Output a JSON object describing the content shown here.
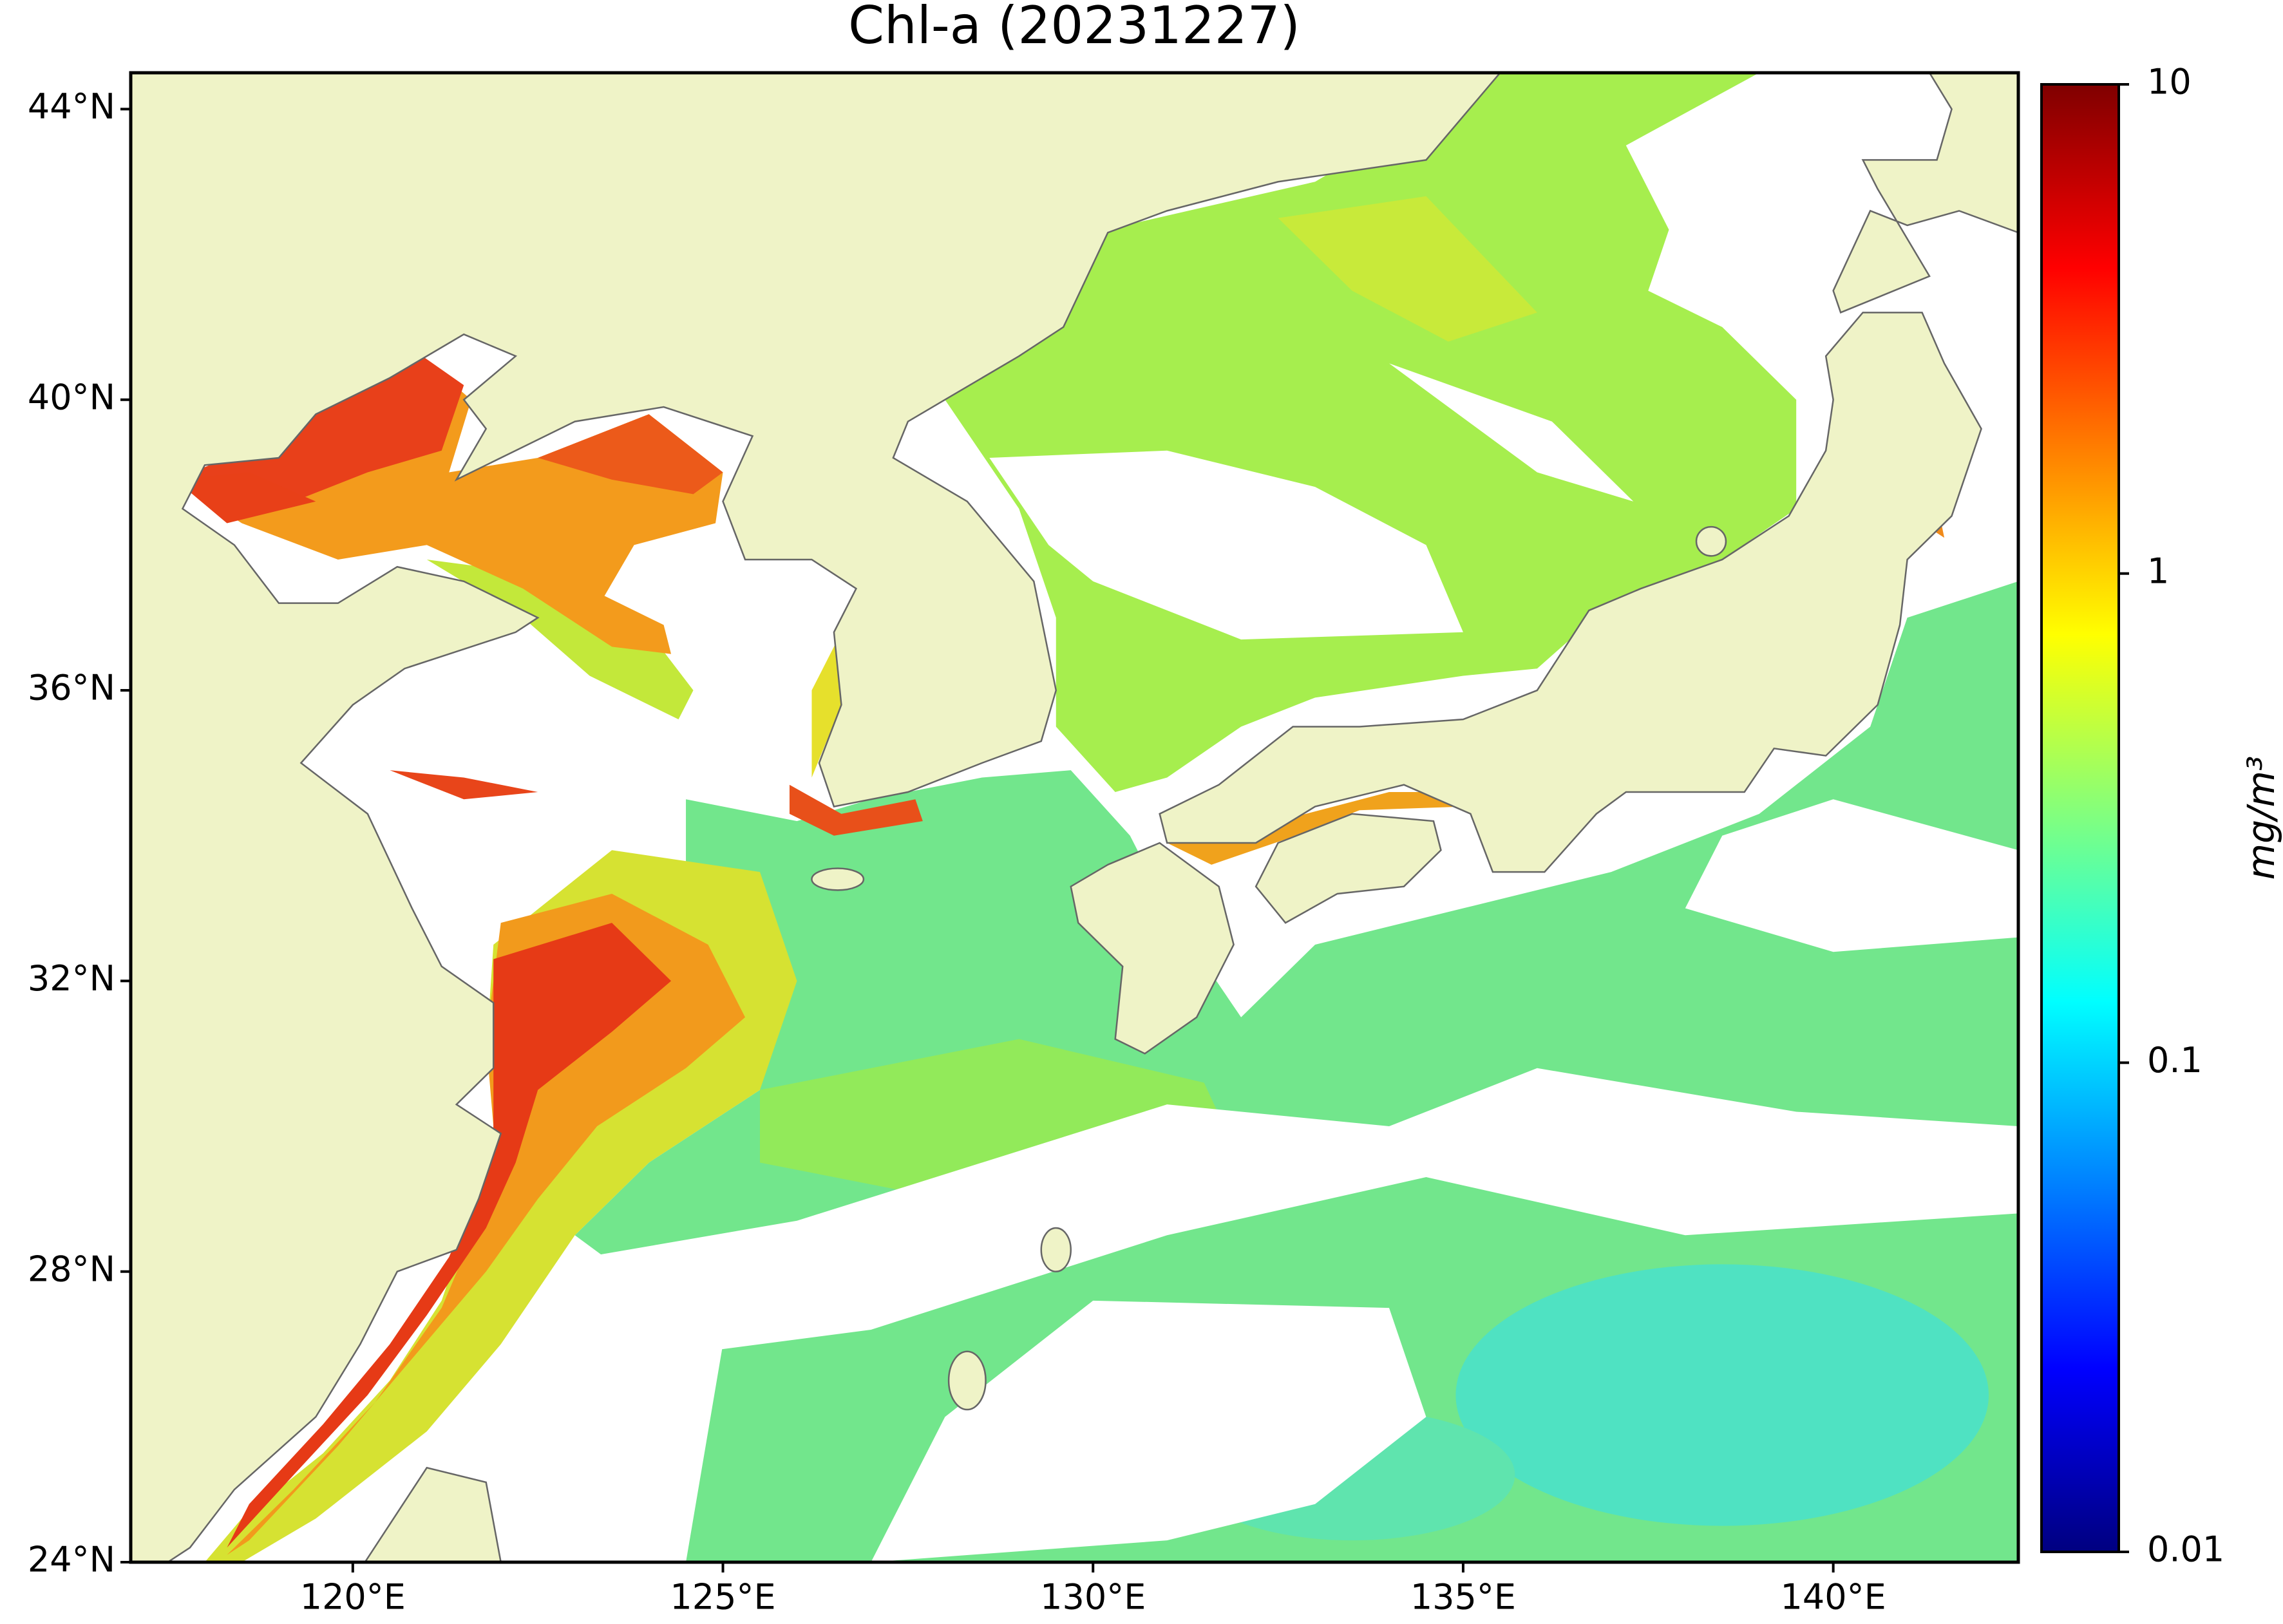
{
  "chart_data": {
    "type": "map",
    "title": "Chl-a (20231227)",
    "xlim": [
      117,
      142.5
    ],
    "ylim": [
      24,
      44.5
    ],
    "xticks": [
      {
        "value": 120,
        "label": "120°E"
      },
      {
        "value": 125,
        "label": "125°E"
      },
      {
        "value": 130,
        "label": "130°E"
      },
      {
        "value": 135,
        "label": "135°E"
      },
      {
        "value": 140,
        "label": "140°E"
      }
    ],
    "yticks": [
      {
        "value": 24,
        "label": "24°N"
      },
      {
        "value": 28,
        "label": "28°N"
      },
      {
        "value": 32,
        "label": "32°N"
      },
      {
        "value": 36,
        "label": "36°N"
      },
      {
        "value": 40,
        "label": "40°N"
      },
      {
        "value": 44,
        "label": "44°N"
      }
    ],
    "colorbar": {
      "label": "mg/m³",
      "scale": "log",
      "lim": [
        0.01,
        10
      ],
      "ticks": [
        0.01,
        0.1,
        1,
        10
      ],
      "colormap": "jet"
    },
    "land_color": "#eff3c7",
    "coast_color": "#666666"
  }
}
